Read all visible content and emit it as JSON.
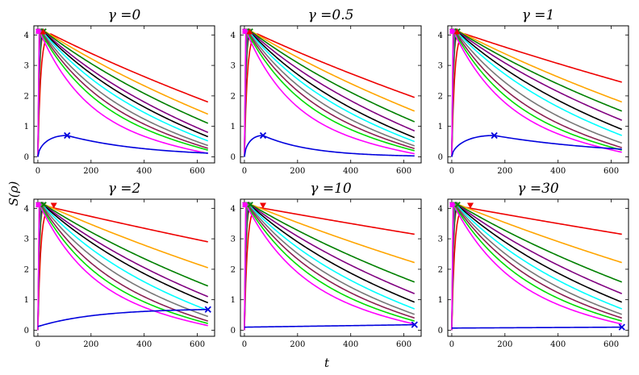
{
  "chart_data": {
    "type": "line",
    "ylabel": "S(ρ)",
    "xlabel": "t",
    "xlim": [
      -15,
      665
    ],
    "ylim": [
      -0.2,
      4.3
    ],
    "xticks": [
      0,
      200,
      400,
      600
    ],
    "yticks": [
      0,
      1,
      2,
      3,
      4
    ],
    "series_colors": [
      "#0000dd",
      "#ff00ff",
      "#00dd00",
      "#8b2252",
      "#777777",
      "#00ffff",
      "#000000",
      "#800080",
      "#008000",
      "#ffa500",
      "#ee0000"
    ],
    "panels": [
      {
        "title": "γ =0",
        "peak": 4.12,
        "blue": {
          "kind": "hump",
          "peak_t": 110,
          "peak_y": 0.7,
          "end_y": 0.12
        },
        "end_values": [
          0.12,
          0.11,
          0.22,
          0.28,
          0.37,
          0.52,
          0.66,
          0.8,
          1.1,
          1.4,
          1.8
        ],
        "marker": {
          "shape": "triangle",
          "t": 20
        }
      },
      {
        "title": "γ =0.5",
        "peak": 4.12,
        "blue": {
          "kind": "hump",
          "peak_t": 70,
          "peak_y": 0.7,
          "end_y": 0.03
        },
        "end_values": [
          0.03,
          0.1,
          0.2,
          0.27,
          0.36,
          0.5,
          0.63,
          0.85,
          1.15,
          1.5,
          1.95
        ],
        "marker": {
          "shape": "triangle",
          "t": 20
        }
      },
      {
        "title": "γ =1",
        "peak": 4.12,
        "blue": {
          "kind": "hump",
          "peak_t": 160,
          "peak_y": 0.7,
          "end_y": 0.25
        },
        "end_values": [
          0.25,
          0.15,
          0.22,
          0.3,
          0.45,
          0.7,
          0.9,
          1.2,
          1.5,
          1.8,
          2.45
        ],
        "marker": {
          "shape": "triangle",
          "t": 20
        }
      },
      {
        "title": "γ =2",
        "peak": 4.12,
        "blue": {
          "kind": "rising",
          "start_y": 0.12,
          "end_y": 0.68
        },
        "end_values": [
          0.68,
          0.15,
          0.22,
          0.3,
          0.45,
          0.65,
          0.9,
          1.1,
          1.45,
          2.05,
          2.9
        ],
        "marker": {
          "shape": "down-triangle",
          "t": 60
        }
      },
      {
        "title": "γ =10",
        "peak": 4.12,
        "blue": {
          "kind": "flat",
          "start_y": 0.1,
          "end_y": 0.18
        },
        "end_values": [
          0.18,
          0.2,
          0.3,
          0.4,
          0.52,
          0.7,
          0.92,
          1.2,
          1.58,
          2.22,
          3.15
        ],
        "marker": {
          "shape": "down-triangle",
          "t": 70
        }
      },
      {
        "title": "γ =30",
        "peak": 4.12,
        "blue": {
          "kind": "flat",
          "start_y": 0.07,
          "end_y": 0.1
        },
        "end_values": [
          0.1,
          0.2,
          0.3,
          0.4,
          0.52,
          0.7,
          0.92,
          1.2,
          1.58,
          2.22,
          3.15
        ],
        "marker": {
          "shape": "down-triangle",
          "t": 70
        }
      }
    ]
  }
}
